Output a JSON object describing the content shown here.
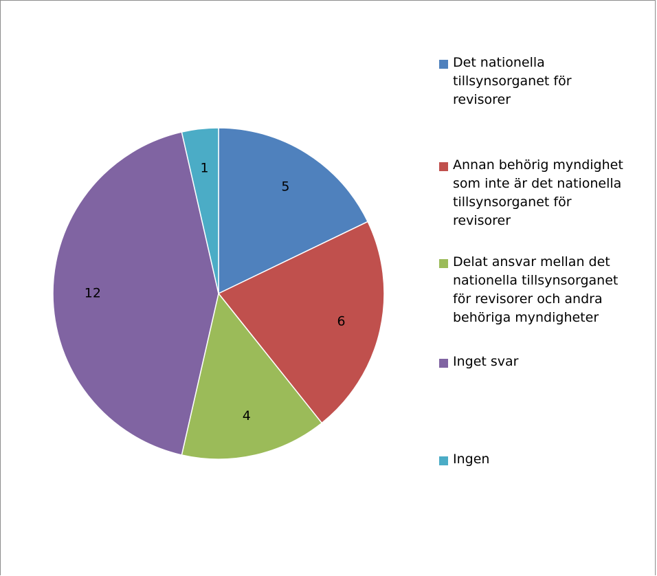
{
  "chart_data": {
    "type": "pie",
    "title": "",
    "categories": [
      "Det nationella tillsynsorganet för revisorer",
      "Annan behörig myndighet som inte är det nationella tillsynsorganet för revisorer",
      "Delat ansvar mellan det nationella tillsynsorganet för revisorer och andra behöriga myndigheter",
      "Inget svar",
      "Ingen"
    ],
    "values": [
      5,
      6,
      4,
      12,
      1
    ],
    "data_labels": [
      "5",
      "6",
      "4",
      "12",
      "1"
    ],
    "colors": [
      "#4f81bd",
      "#c0504d",
      "#9bbb59",
      "#8064a2",
      "#4bacc6"
    ],
    "legend_placement": "right",
    "start_angle": "12 o'clock",
    "direction": "clockwise"
  },
  "legend": {
    "items": [
      {
        "label": "Det nationella\ntillsynsorganet för\nrevisorer",
        "color": "#4f81bd"
      },
      {
        "label": "Annan behörig myndighet\nsom inte är det nationella\ntillsynsorganet för\nrevisorer",
        "color": "#c0504d"
      },
      {
        "label": "Delat ansvar mellan det\nnationella tillsynsorganet\nför revisorer och andra\nbehöriga myndigheter",
        "color": "#9bbb59"
      },
      {
        "label": "Inget svar",
        "color": "#8064a2"
      },
      {
        "label": "Ingen",
        "color": "#4bacc6"
      }
    ]
  }
}
